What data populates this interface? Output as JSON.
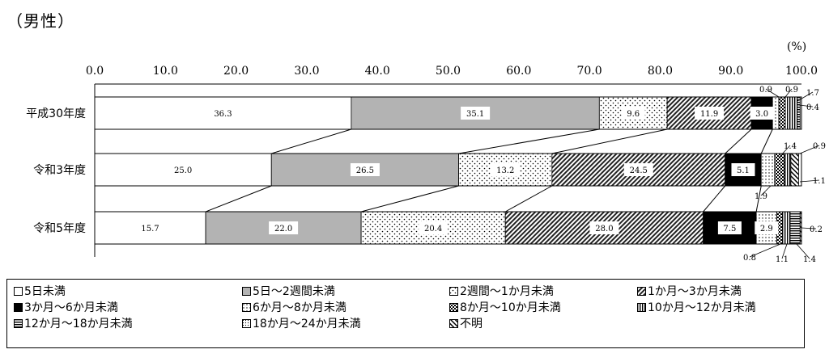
{
  "title": "（男性）",
  "unit": "(%)",
  "chart_data": {
    "type": "bar",
    "orientation": "horizontal-stacked-100",
    "title": "（男性）",
    "unit": "(%)",
    "xlim": [
      0,
      100
    ],
    "ticks": [
      "0.0",
      "10.0",
      "20.0",
      "30.0",
      "40.0",
      "50.0",
      "60.0",
      "70.0",
      "80.0",
      "90.0",
      "100.0"
    ],
    "categories": [
      "平成30年度",
      "令和3年度",
      "令和5年度"
    ],
    "series": [
      {
        "name": "5日未満",
        "values": [
          36.3,
          25.0,
          15.7
        ],
        "pattern": "white"
      },
      {
        "name": "5日～2週間未満",
        "values": [
          35.1,
          26.5,
          22.0
        ],
        "pattern": "gray"
      },
      {
        "name": "2週間～1か月未満",
        "values": [
          9.6,
          13.2,
          20.4
        ],
        "pattern": "dots"
      },
      {
        "name": "1か月～3か月未満",
        "values": [
          11.9,
          24.5,
          28.0
        ],
        "pattern": "diag"
      },
      {
        "name": "3か月～6か月未満",
        "values": [
          3.0,
          5.1,
          7.5
        ],
        "pattern": "black"
      },
      {
        "name": "6か月～8か月未満",
        "values": [
          0.9,
          1.9,
          2.9
        ],
        "pattern": "dots2"
      },
      {
        "name": "8か月～10か月未満",
        "values": [
          0.9,
          1.4,
          0.8
        ],
        "pattern": "check"
      },
      {
        "name": "10か月～12か月未満",
        "values": [
          1.7,
          0.9,
          1.1
        ],
        "pattern": "vline"
      },
      {
        "name": "12か月～18か月未満",
        "values": [
          0.4,
          0.0,
          1.4
        ],
        "pattern": "hline"
      },
      {
        "name": "18か月～24か月未満",
        "values": [
          0.0,
          0.0,
          0.0
        ],
        "pattern": "dots3"
      },
      {
        "name": "不明",
        "values": [
          0.0,
          1.1,
          0.2
        ],
        "pattern": "diag2"
      }
    ],
    "inside_labels": [
      [
        "36.3",
        "35.1",
        "9.6",
        "11.9",
        "3.0"
      ],
      [
        "25.0",
        "26.5",
        "13.2",
        "24.5",
        "5.1"
      ],
      [
        "15.7",
        "22.0",
        "20.4",
        "28.0",
        "7.5",
        "2.9"
      ]
    ],
    "outside_labels": [
      [
        "0.9",
        "0.9",
        "1.7",
        "0.4"
      ],
      [
        "1.4",
        "0.9",
        "1.9",
        "1.1"
      ],
      [
        "0.8",
        "1.1",
        "1.4",
        "0.2"
      ]
    ],
    "legend_position": "bottom",
    "grid": false
  }
}
